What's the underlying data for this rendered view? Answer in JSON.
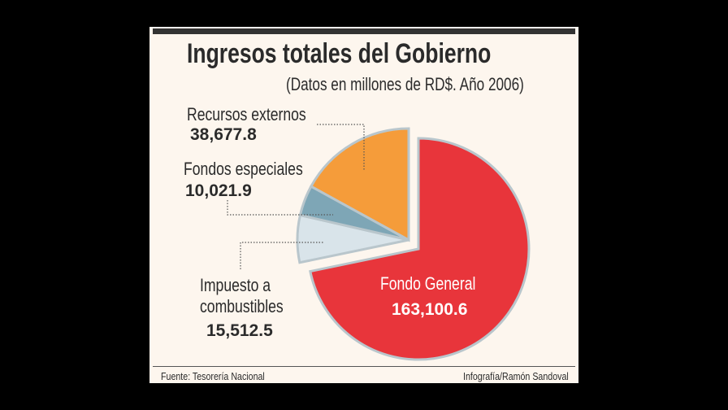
{
  "chart_data": {
    "type": "pie",
    "title": "Ingresos totales del Gobierno",
    "subtitle": "(Datos en millones de RD$. Año 2006)",
    "slices": [
      {
        "label": "Fondo General",
        "value": 163100.6,
        "value_text": "163,100.6",
        "color": "#e8353b"
      },
      {
        "label_lines": [
          "Impuesto a",
          "combustibles"
        ],
        "label": "Impuesto a combustibles",
        "value": 15512.5,
        "value_text": "15,512.5",
        "color": "#d9e4ea"
      },
      {
        "label": "Fondos especiales",
        "value": 10021.9,
        "value_text": "10,021.9",
        "color": "#7ea6b6"
      },
      {
        "label": "Recursos externos",
        "value": 38677.8,
        "value_text": "38,677.8",
        "color": "#f59c3a"
      }
    ],
    "source": "Fuente: Tesorería Nacional",
    "credit": "Infografía/Ramón Sandoval"
  }
}
